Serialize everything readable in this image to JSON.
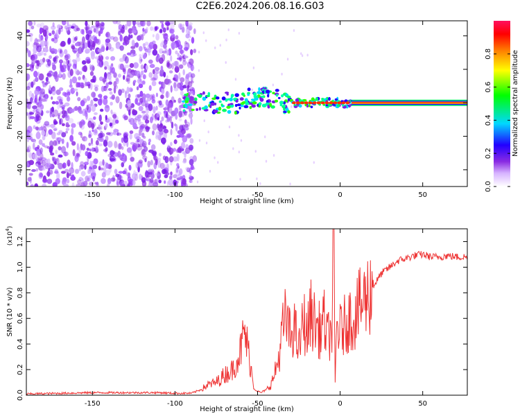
{
  "title": "C2E6.2024.206.08.16.G03",
  "chart_data": [
    {
      "type": "heatmap",
      "xlabel": "Height of straight line (km)",
      "ylabel": "Frequency (Hz)",
      "xlim": [
        -190,
        77
      ],
      "ylim": [
        -50,
        49
      ],
      "xticks": [
        -150,
        -100,
        -50,
        0,
        50
      ],
      "xtick_labels": [
        "-150",
        "-100",
        "-50",
        "0",
        "50"
      ],
      "yticks": [
        -40,
        -20,
        0,
        20,
        40
      ],
      "ytick_labels": [
        "-40",
        "-20",
        "0",
        "20",
        "40"
      ],
      "colorbar": {
        "label": "Normalized spectral amplitude",
        "range": [
          0,
          1
        ],
        "ticks": [
          0.0,
          0.2,
          0.4,
          0.6,
          0.8
        ],
        "tick_labels": [
          "0.0",
          "0.2",
          "0.4",
          "0.6",
          "0.8"
        ],
        "colormap": "rainbow"
      },
      "regions": [
        {
          "description_x": [
            -190,
            -88
          ],
          "f_range": [
            -50,
            49
          ],
          "amplitude": 0.05
        },
        {
          "description_x": [
            -95,
            -30
          ],
          "f_center": 0,
          "amplitude": 0.4
        },
        {
          "description_x": [
            7,
            77
          ],
          "f_center": 0,
          "amplitude": 0.95
        }
      ]
    },
    {
      "type": "line",
      "xlabel": "Height of straight line (km)",
      "ylabel": "SNR (10 * v/v)",
      "y_multiplier": "(x10",
      "y_multiplier_exp": "4",
      "y_multiplier_close": ")",
      "xlim": [
        -190,
        77
      ],
      "ylim": [
        0,
        1.3
      ],
      "xticks": [
        -150,
        -100,
        -50,
        0,
        50
      ],
      "xtick_labels": [
        "-150",
        "-100",
        "-50",
        "0",
        "50"
      ],
      "yticks": [
        0.0,
        0.2,
        0.4,
        0.6,
        0.8,
        1.0,
        1.2
      ],
      "ytick_labels": [
        "0.0",
        "0.2",
        "0.4",
        "0.6",
        "0.8",
        "1.0",
        "1.2"
      ],
      "line_color": "#ee3333",
      "series": [
        {
          "x": [
            -190,
            -170,
            -150,
            -130,
            -110,
            -100,
            -90,
            -85,
            -80,
            -75,
            -70,
            -65,
            -60,
            -58,
            -55,
            -52,
            -50,
            -48,
            -45,
            -42,
            -40,
            -37,
            -35,
            -33,
            -30,
            -28,
            -25,
            -22,
            -20,
            -18,
            -15,
            -12,
            -10,
            -8,
            -5,
            -4,
            -3,
            -2,
            0,
            3,
            5,
            8,
            10,
            15,
            20,
            25,
            30,
            35,
            40,
            45,
            50,
            55,
            60,
            65,
            70,
            77
          ],
          "y": [
            0.01,
            0.015,
            0.02,
            0.02,
            0.02,
            0.015,
            0.015,
            0.04,
            0.08,
            0.1,
            0.16,
            0.2,
            0.36,
            0.5,
            0.3,
            0.05,
            0.03,
            0.02,
            0.04,
            0.08,
            0.15,
            0.3,
            0.5,
            0.6,
            0.45,
            0.55,
            0.35,
            0.6,
            0.45,
            0.65,
            0.55,
            0.5,
            0.6,
            0.45,
            0.5,
            1.27,
            0.1,
            0.55,
            0.5,
            0.55,
            0.6,
            0.6,
            0.65,
            0.75,
            0.85,
            0.95,
            1.0,
            1.05,
            1.07,
            1.09,
            1.1,
            1.08,
            1.08,
            1.09,
            1.08,
            1.08
          ]
        }
      ]
    }
  ]
}
